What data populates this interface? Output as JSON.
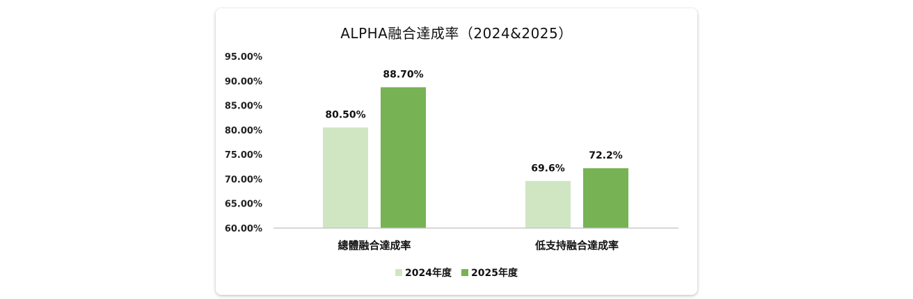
{
  "chart_data": {
    "type": "bar",
    "title": "ALPHA融合達成率（2024&2025）",
    "categories": [
      "總體融合達成率",
      "低支持融合達成率"
    ],
    "series": [
      {
        "name": "2024年度",
        "values": [
          80.5,
          69.6
        ],
        "labels": [
          "80.50%",
          "69.6%"
        ],
        "color": "#d0e6c3"
      },
      {
        "name": "2025年度",
        "values": [
          88.7,
          72.2
        ],
        "labels": [
          "88.70%",
          "72.2%"
        ],
        "color": "#77b255"
      }
    ],
    "ylim": [
      60,
      95
    ],
    "yticks": [
      "60.00%",
      "65.00%",
      "70.00%",
      "75.00%",
      "80.00%",
      "85.00%",
      "90.00%",
      "95.00%"
    ],
    "grid": false,
    "legend_position": "bottom"
  }
}
